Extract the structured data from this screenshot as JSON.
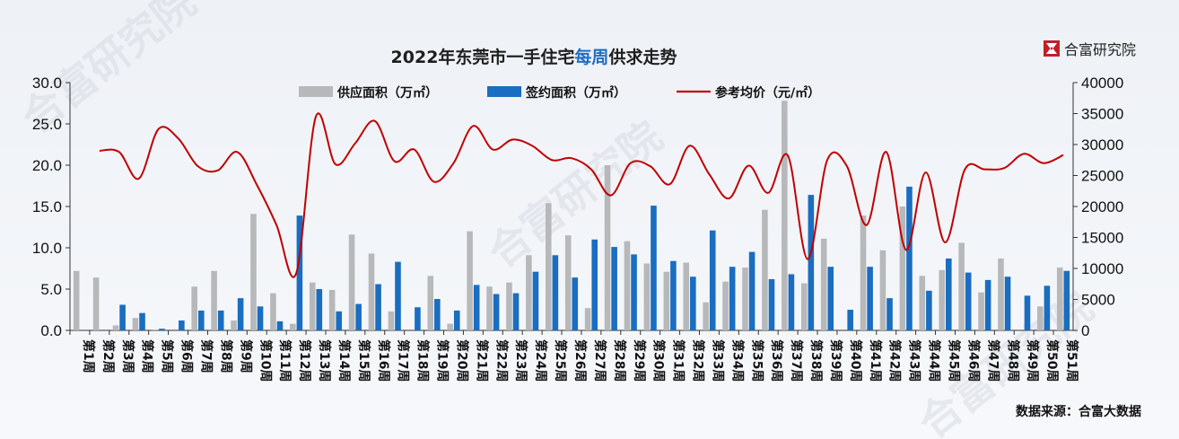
{
  "brand": {
    "name": "合富研究院",
    "watermark": "合富研究院"
  },
  "source": "数据来源：合富大数据",
  "chart_data": {
    "type": "bar",
    "title_pre": "2022年东莞市一手住宅",
    "title_hl": "每周",
    "title_post": "供求走势",
    "categories": [
      "第1周",
      "第2周",
      "第3周",
      "第4周",
      "第5周",
      "第6周",
      "第7周",
      "第8周",
      "第9周",
      "第10周",
      "第11周",
      "第12周",
      "第13周",
      "第14周",
      "第15周",
      "第16周",
      "第17周",
      "第18周",
      "第19周",
      "第20周",
      "第21周",
      "第22周",
      "第23周",
      "第24周",
      "第25周",
      "第26周",
      "第27周",
      "第28周",
      "第29周",
      "第30周",
      "第31周",
      "第32周",
      "第33周",
      "第34周",
      "第35周",
      "第36周",
      "第37周",
      "第38周",
      "第39周",
      "第40周",
      "第41周",
      "第42周",
      "第43周",
      "第44周",
      "第45周",
      "第46周",
      "第47周",
      "第48周",
      "第49周",
      "第50周",
      "第51周"
    ],
    "left_axis": {
      "min": 0,
      "max": 30,
      "step": 5,
      "ticks": [
        "0.0",
        "5.0",
        "10.0",
        "15.0",
        "20.0",
        "25.0",
        "30.0"
      ]
    },
    "right_axis": {
      "min": 0,
      "max": 40000,
      "step": 5000,
      "ticks": [
        "0",
        "5000",
        "10000",
        "15000",
        "20000",
        "25000",
        "30000",
        "35000",
        "40000"
      ]
    },
    "legend": [
      "供应面积（万㎡）",
      "签约面积（万㎡）",
      "参考均价（元/㎡）"
    ],
    "colors": {
      "supply": "#b7b8ba",
      "signed": "#1a6dc0",
      "price": "#c00000"
    },
    "series": [
      {
        "name": "供应面积（万㎡）",
        "axis": "left",
        "values": [
          7.2,
          6.4,
          0.6,
          1.5,
          0.1,
          0,
          5.3,
          7.2,
          1.2,
          14.1,
          4.5,
          0.8,
          5.8,
          4.9,
          11.6,
          9.3,
          2.3,
          0,
          6.6,
          0.8,
          12,
          5.3,
          5.8,
          9.1,
          15.4,
          11.5,
          2.7,
          20,
          10.8,
          8.1,
          7.1,
          8.2,
          3.4,
          5.9,
          7.6,
          14.6,
          27.8,
          5.7,
          11.1,
          0,
          13.9,
          9.7,
          15,
          6.6,
          7.3,
          10.6,
          4.6,
          8.7,
          0,
          2.9,
          7.6
        ]
      },
      {
        "name": "签约面积（万㎡）",
        "axis": "left",
        "values": [
          0,
          0,
          3.1,
          2.1,
          0.2,
          1.2,
          2.4,
          2.4,
          3.9,
          2.9,
          1.1,
          13.9,
          5,
          2.3,
          3.2,
          5.6,
          8.3,
          2.8,
          3.8,
          2.4,
          5.5,
          4.4,
          4.5,
          7.1,
          9.1,
          6.4,
          11,
          10.1,
          9.2,
          15.1,
          8.4,
          6.5,
          12.1,
          7.7,
          9.5,
          6.2,
          6.8,
          16.4,
          7.7,
          2.5,
          7.7,
          3.9,
          17.4,
          4.8,
          8.7,
          7,
          6.1,
          6.5,
          4.2,
          5.4,
          7.2
        ]
      },
      {
        "name": "参考均价（元/㎡）",
        "axis": "right",
        "values": [
          null,
          29000,
          28800,
          24500,
          32500,
          31000,
          26500,
          25800,
          28800,
          23500,
          17000,
          9200,
          34500,
          26800,
          30200,
          33800,
          27300,
          29200,
          24000,
          27000,
          33000,
          29200,
          30800,
          29800,
          27500,
          27800,
          26000,
          21800,
          27000,
          26500,
          23600,
          29800,
          25200,
          21300,
          26600,
          22200,
          28200,
          11500,
          27500,
          26500,
          17000,
          28800,
          13000,
          25500,
          14200,
          26000,
          26000,
          26200,
          28500,
          27000,
          28300
        ]
      }
    ]
  }
}
